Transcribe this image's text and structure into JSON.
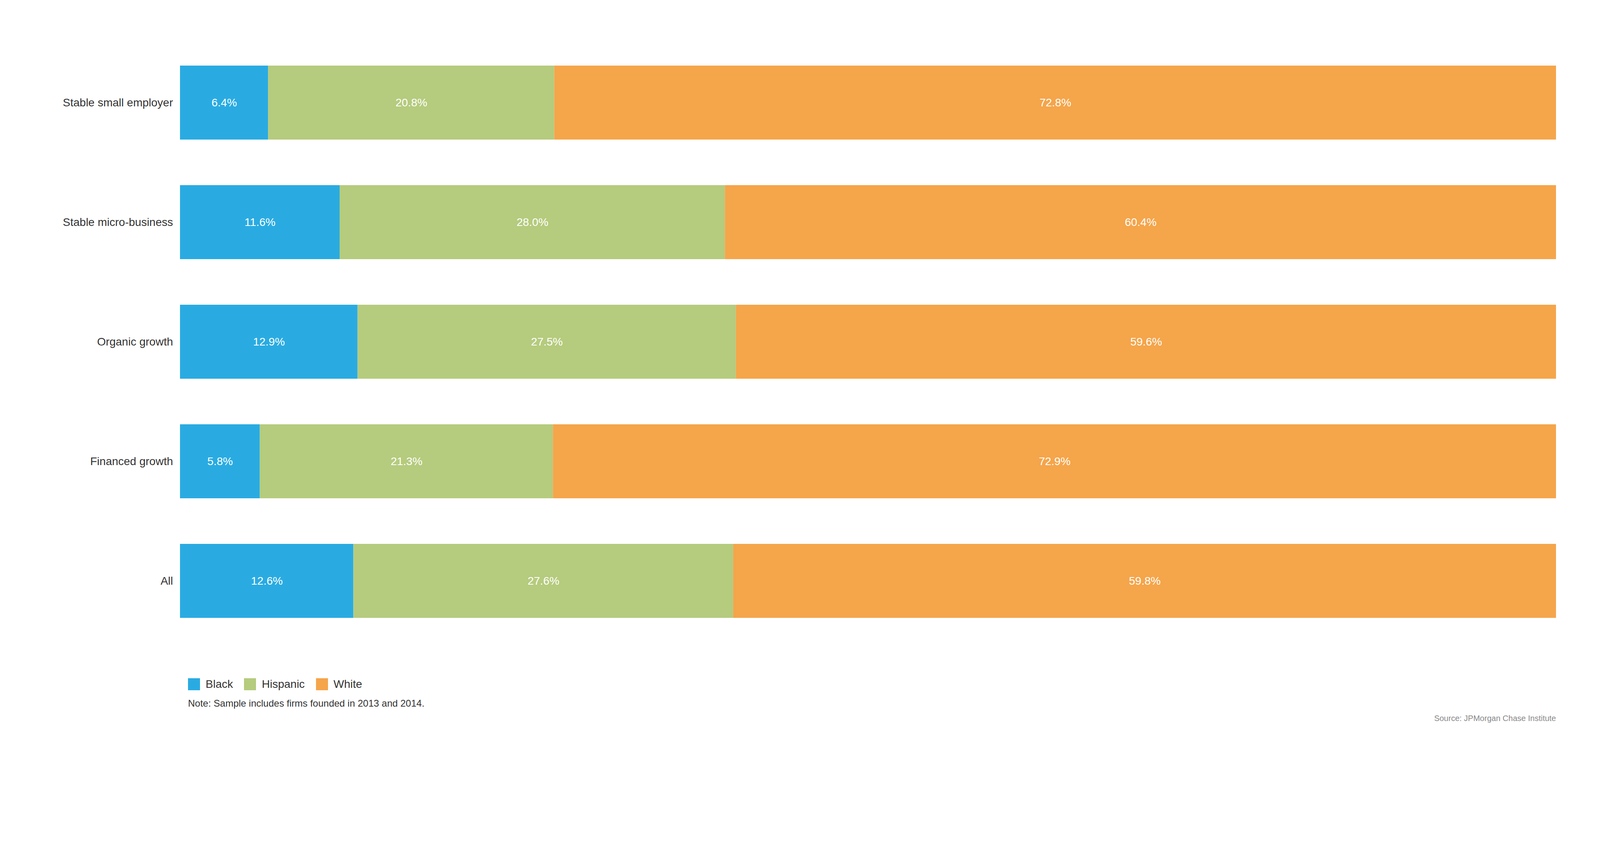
{
  "chart_data": {
    "type": "bar",
    "orientation": "horizontal",
    "stacked": true,
    "categories": [
      "All",
      "Financed growth",
      "Organic growth",
      "Stable micro-business",
      "Stable small employer"
    ],
    "series": [
      {
        "name": "Black",
        "color": "#29abe2",
        "values": [
          12.6,
          5.8,
          12.9,
          11.6,
          6.4
        ],
        "value_labels": [
          "12.6%",
          "5.8%",
          "12.9%",
          "11.6%",
          "6.4%"
        ]
      },
      {
        "name": "Hispanic",
        "color": "#b5cb7d",
        "values": [
          27.6,
          21.3,
          27.5,
          28.0,
          20.8
        ],
        "value_labels": [
          "27.6%",
          "21.3%",
          "27.5%",
          "28.0%",
          "20.8%"
        ]
      },
      {
        "name": "White",
        "color": "#f5a54a",
        "values": [
          59.8,
          72.9,
          59.6,
          60.4,
          72.8
        ],
        "value_labels": [
          "59.8%",
          "72.9%",
          "59.6%",
          "60.4%",
          "72.8%"
        ]
      }
    ],
    "xlim": [
      0,
      100
    ],
    "data_labels": true,
    "tick_labels": "y",
    "grid": false,
    "legend": "lower left",
    "annotations": [
      "Note: Sample includes firms founded in 2013 and 2014.",
      "Source: JPMorgan Chase Institute"
    ]
  }
}
